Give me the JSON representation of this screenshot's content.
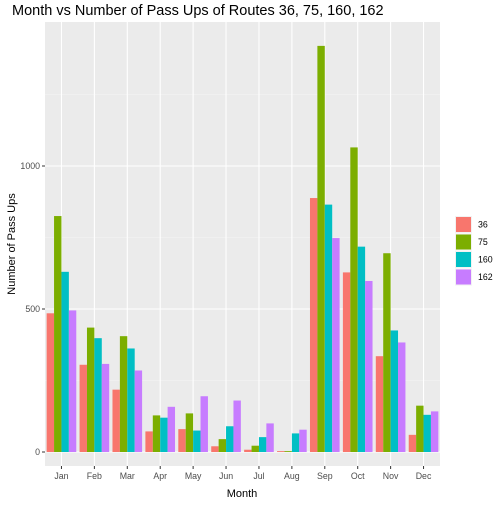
{
  "chart_data": {
    "type": "bar",
    "title": "Month vs Number of Pass Ups of Routes 36, 75, 160, 162",
    "xlabel": "Month",
    "ylabel": "Number of Pass Ups",
    "categories": [
      "Jan",
      "Feb",
      "Mar",
      "Apr",
      "May",
      "Jun",
      "Jul",
      "Aug",
      "Sep",
      "Oct",
      "Nov",
      "Dec"
    ],
    "series": [
      {
        "name": "36",
        "color": "#F8766D",
        "values": [
          485,
          305,
          218,
          72,
          80,
          20,
          8,
          3,
          888,
          628,
          335,
          60
        ]
      },
      {
        "name": "75",
        "color": "#7CAE00",
        "values": [
          825,
          435,
          405,
          128,
          135,
          45,
          22,
          3,
          1420,
          1065,
          695,
          162
        ]
      },
      {
        "name": "160",
        "color": "#00BFC4",
        "values": [
          630,
          398,
          362,
          120,
          75,
          90,
          52,
          65,
          865,
          718,
          425,
          130
        ]
      },
      {
        "name": "162",
        "color": "#C77CFF",
        "values": [
          495,
          308,
          285,
          158,
          195,
          180,
          100,
          78,
          748,
          598,
          383,
          142
        ]
      }
    ],
    "yticks": [
      0,
      500,
      1000
    ],
    "ylim": [
      -50,
      1500
    ],
    "grid": true,
    "legend": "right"
  }
}
